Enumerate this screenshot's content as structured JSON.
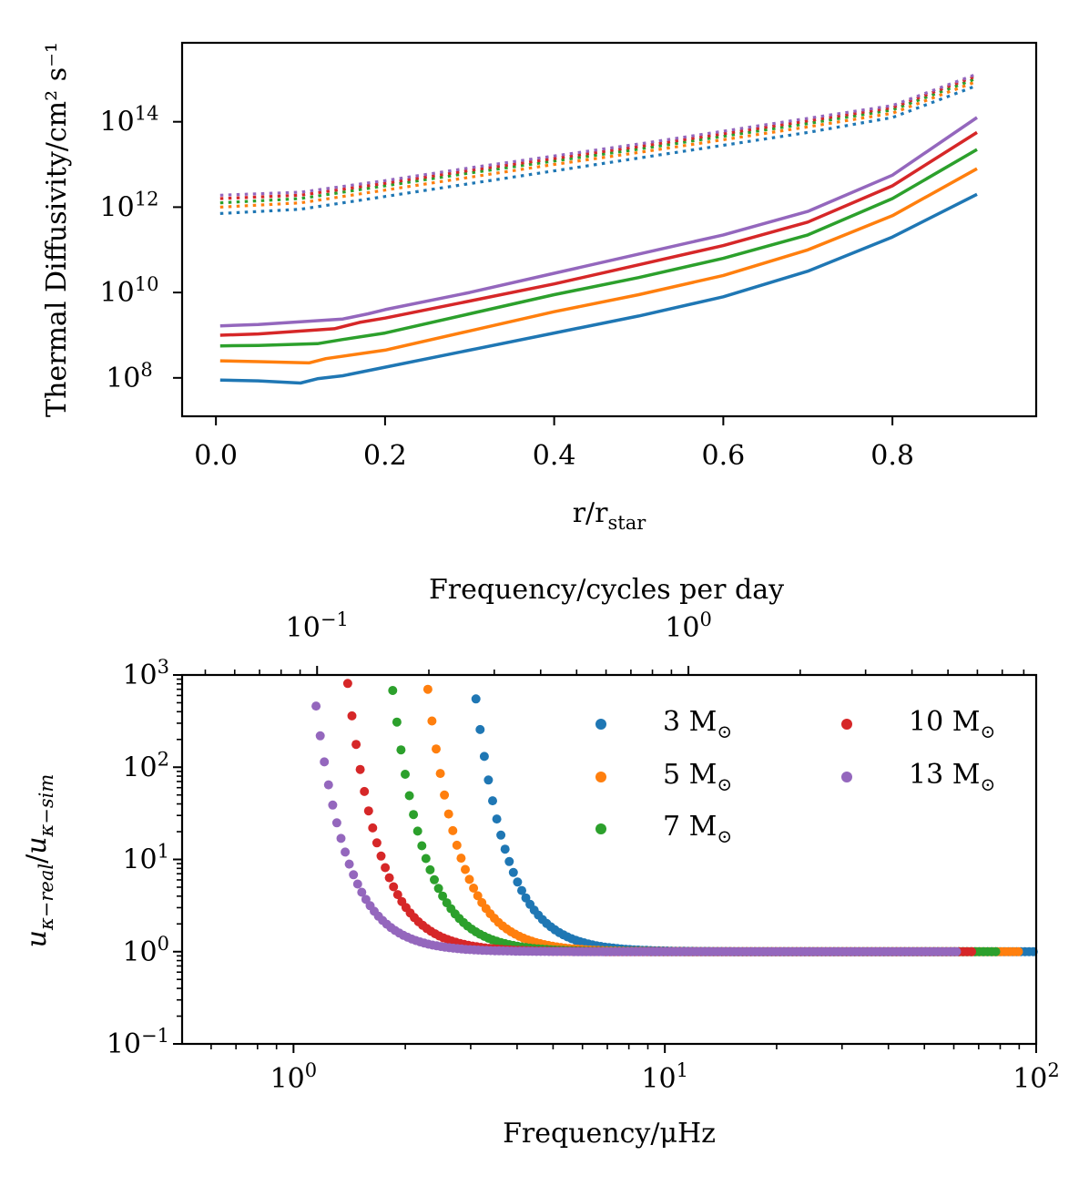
{
  "chart_data": [
    {
      "type": "line",
      "xlabel": "r/r",
      "xlabel_sub": "star",
      "ylabel": "Thermal Diffusivity/cm² s⁻¹",
      "xlim": [
        -0.04,
        0.97
      ],
      "ylim_log10": [
        7.1,
        15.85
      ],
      "yscale": "log",
      "x_ticks": [
        0.0,
        0.2,
        0.4,
        0.6,
        0.8
      ],
      "x_tick_labels": [
        "0.0",
        "0.2",
        "0.4",
        "0.6",
        "0.8"
      ],
      "y_ticks_log10": [
        8,
        10,
        12,
        14
      ],
      "y_tick_labels": [
        "10",
        "10",
        "10",
        "10"
      ],
      "y_tick_exponents": [
        "8",
        "10",
        "12",
        "14"
      ],
      "colors": [
        "#1f77b4",
        "#ff7f0e",
        "#2ca02c",
        "#d62728",
        "#9467bd"
      ],
      "series_solid": [
        {
          "color": "#1f77b4",
          "x": [
            0.005,
            0.05,
            0.1,
            0.12,
            0.15,
            0.2,
            0.3,
            0.4,
            0.5,
            0.6,
            0.7,
            0.8,
            0.9
          ],
          "log10y": [
            7.95,
            7.93,
            7.88,
            7.98,
            8.05,
            8.25,
            8.65,
            9.05,
            9.45,
            9.9,
            10.5,
            11.3,
            12.3
          ]
        },
        {
          "color": "#ff7f0e",
          "x": [
            0.005,
            0.05,
            0.11,
            0.13,
            0.2,
            0.3,
            0.4,
            0.5,
            0.6,
            0.7,
            0.8,
            0.9
          ],
          "log10y": [
            8.4,
            8.38,
            8.35,
            8.45,
            8.65,
            9.1,
            9.55,
            9.95,
            10.4,
            11.0,
            11.8,
            12.9
          ]
        },
        {
          "color": "#2ca02c",
          "x": [
            0.005,
            0.05,
            0.12,
            0.15,
            0.2,
            0.3,
            0.4,
            0.5,
            0.6,
            0.7,
            0.8,
            0.9
          ],
          "log10y": [
            8.75,
            8.76,
            8.8,
            8.9,
            9.05,
            9.5,
            9.95,
            10.35,
            10.8,
            11.35,
            12.2,
            13.35
          ]
        },
        {
          "color": "#d62728",
          "x": [
            0.005,
            0.05,
            0.14,
            0.17,
            0.2,
            0.3,
            0.4,
            0.5,
            0.6,
            0.7,
            0.8,
            0.9
          ],
          "log10y": [
            9.0,
            9.03,
            9.15,
            9.3,
            9.4,
            9.8,
            10.2,
            10.65,
            11.1,
            11.65,
            12.5,
            13.75
          ]
        },
        {
          "color": "#9467bd",
          "x": [
            0.005,
            0.05,
            0.15,
            0.18,
            0.2,
            0.3,
            0.4,
            0.5,
            0.6,
            0.7,
            0.8,
            0.9
          ],
          "log10y": [
            9.22,
            9.25,
            9.38,
            9.5,
            9.6,
            10.0,
            10.45,
            10.9,
            11.35,
            11.9,
            12.75,
            14.1
          ]
        }
      ],
      "series_dotted": [
        {
          "color": "#1f77b4",
          "x": [
            0.005,
            0.1,
            0.2,
            0.3,
            0.4,
            0.5,
            0.6,
            0.7,
            0.8,
            0.9
          ],
          "log10y": [
            11.85,
            11.95,
            12.25,
            12.55,
            12.85,
            13.15,
            13.45,
            13.75,
            14.1,
            14.85
          ]
        },
        {
          "color": "#ff7f0e",
          "x": [
            0.005,
            0.1,
            0.2,
            0.3,
            0.4,
            0.5,
            0.6,
            0.7,
            0.8,
            0.9
          ],
          "log10y": [
            12.0,
            12.1,
            12.4,
            12.7,
            13.0,
            13.28,
            13.58,
            13.88,
            14.2,
            14.95
          ]
        },
        {
          "color": "#2ca02c",
          "x": [
            0.005,
            0.1,
            0.2,
            0.3,
            0.4,
            0.5,
            0.6,
            0.7,
            0.8,
            0.9
          ],
          "log10y": [
            12.1,
            12.2,
            12.5,
            12.8,
            13.08,
            13.36,
            13.66,
            13.96,
            14.28,
            15.02
          ]
        },
        {
          "color": "#d62728",
          "x": [
            0.005,
            0.1,
            0.2,
            0.3,
            0.4,
            0.5,
            0.6,
            0.7,
            0.8,
            0.9
          ],
          "log10y": [
            12.2,
            12.28,
            12.56,
            12.86,
            13.14,
            13.42,
            13.72,
            14.02,
            14.33,
            15.08
          ]
        },
        {
          "color": "#9467bd",
          "x": [
            0.005,
            0.1,
            0.2,
            0.3,
            0.4,
            0.5,
            0.6,
            0.7,
            0.8,
            0.9
          ],
          "log10y": [
            12.28,
            12.35,
            12.62,
            12.92,
            13.2,
            13.48,
            13.78,
            14.08,
            14.38,
            15.12
          ]
        }
      ]
    },
    {
      "type": "scatter",
      "xscale": "log",
      "yscale": "log",
      "xlabel": "Frequency/μHz",
      "top_xlabel": "Frequency/cycles per day",
      "ylabel_base1": "u",
      "ylabel_sub1": "κ−real",
      "ylabel_slash": "/",
      "ylabel_base2": "u",
      "ylabel_sub2": "κ−sim",
      "xlim_log10": [
        -0.3,
        2
      ],
      "ylim_log10": [
        -1,
        3
      ],
      "x_tick_labels": [
        "10",
        "10",
        "10"
      ],
      "x_tick_exponents": [
        "0",
        "1",
        "2"
      ],
      "x_ticks_log10": [
        0,
        1,
        2
      ],
      "top_tick_labels": [
        "10",
        "10"
      ],
      "top_tick_exponents": [
        "−1",
        "0"
      ],
      "top_ticks_log10_cpd": [
        -1,
        0
      ],
      "y_tick_labels": [
        "10",
        "10",
        "10",
        "10",
        "10"
      ],
      "y_tick_exponents": [
        "−1",
        "0",
        "1",
        "2",
        "3"
      ],
      "y_ticks_log10": [
        -1,
        0,
        1,
        2,
        3
      ],
      "legend_position": "top-right",
      "series": [
        {
          "name": "3 M",
          "color": "#1f77b4",
          "fmin": 3.1,
          "ymax": 550,
          "fend": 100
        },
        {
          "name": "5 M",
          "color": "#ff7f0e",
          "fmin": 2.3,
          "ymax": 700,
          "fend": 90
        },
        {
          "name": "7 M",
          "color": "#2ca02c",
          "fmin": 1.85,
          "ymax": 680,
          "fend": 78
        },
        {
          "name": "10 M",
          "color": "#d62728",
          "fmin": 1.4,
          "ymax": 810,
          "fend": 68
        },
        {
          "name": "13 M",
          "color": "#9467bd",
          "fmin": 1.15,
          "ymax": 460,
          "fend": 62
        }
      ],
      "legend_sun_symbol": "⊙",
      "asymptote_value": 1
    }
  ]
}
